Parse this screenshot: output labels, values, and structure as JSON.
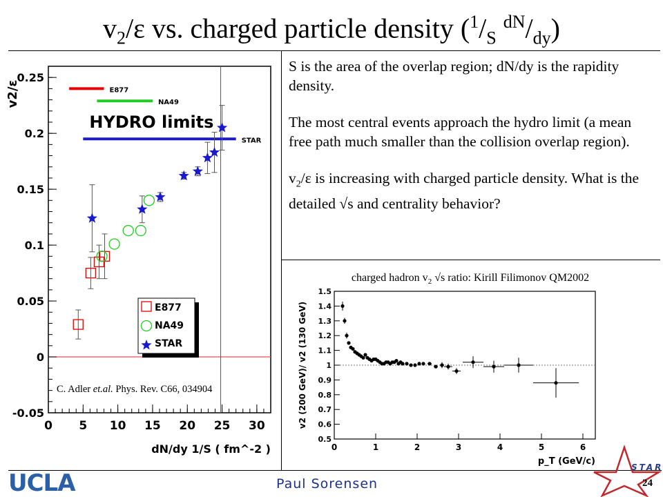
{
  "slide": {
    "title": {
      "v": "v",
      "v_sub": "2",
      "slash": "/",
      "eps": "ε",
      "rest": " vs. charged particle density (",
      "one": "1",
      "over": "/",
      "S": "S",
      "dN": "dN",
      "over2": "/",
      "dy": "dy",
      "close": ")"
    },
    "p1": "S is the area of the overlap region; dN/dy is the rapidity density.",
    "p2": "The most central events approach the hydro limit (a mean free path much smaller than the collision overlap region).",
    "p3a": "v",
    "p3sub": "2",
    "p3b": "/ε is increasing with charged particle density. What is the detailed √s and centrality behavior?",
    "credit_a": "charged  hadron v",
    "credit_sub": "2",
    "credit_b": " √s ratio: Kirill Filimonov QM2002",
    "author": "Paul Sorensen",
    "ucla": "UCLA",
    "page": "24",
    "star_logo_text": "STAR"
  },
  "colors": {
    "e877": "#e60000",
    "na49": "#22cc22",
    "star": "#1a1acc",
    "hydro": "#1a1acc",
    "author": "#1d2f8c",
    "ucla": "#2b5fa8"
  },
  "chart_data": [
    {
      "type": "scatter",
      "title": "",
      "xlabel": "dN/dy 1/S ( fm^-2 )",
      "ylabel": "v2/ε",
      "xlim": [
        0,
        32
      ],
      "ylim": [
        -0.05,
        0.26
      ],
      "x_ticks": [
        "0",
        "5",
        "10",
        "15",
        "20",
        "25",
        "30"
      ],
      "y_ticks": [
        "-0.05",
        "0",
        "0.05",
        "0.1",
        "0.15",
        "0.2",
        "0.25"
      ],
      "hydro_label": "HYDRO  limits",
      "reference": "C. Adler et.al. Phys. Rev. C66, 034904",
      "limits": [
        {
          "name": "E877",
          "y": 0.24,
          "x": [
            3,
            8
          ]
        },
        {
          "name": "NA49",
          "y": 0.229,
          "x": [
            7,
            15
          ]
        },
        {
          "name": "STAR",
          "y": 0.195,
          "x": [
            5,
            27
          ]
        }
      ],
      "series": [
        {
          "name": "E877",
          "marker": "open-square",
          "x": [
            4.3,
            6.1,
            7.3,
            8.1
          ],
          "y": [
            0.029,
            0.075,
            0.085,
            0.09
          ],
          "err": [
            0.013,
            0.014,
            0.015,
            0.02
          ]
        },
        {
          "name": "NA49",
          "marker": "open-circle",
          "x": [
            7.7,
            9.5,
            11.5,
            13.3,
            14.5
          ],
          "y": [
            0.09,
            0.101,
            0.113,
            0.113,
            0.14
          ],
          "err": [
            0.0,
            0.0,
            0.0,
            0.0,
            0.0
          ]
        },
        {
          "name": "STAR",
          "marker": "star",
          "x": [
            6.3,
            13.5,
            16.1,
            19.5,
            21.5,
            22.9,
            23.9,
            25.0
          ],
          "y": [
            0.124,
            0.132,
            0.143,
            0.162,
            0.166,
            0.178,
            0.183,
            0.205
          ],
          "err": [
            0.03,
            0.012,
            0.004,
            0.003,
            0.004,
            0.014,
            0.018,
            0.02
          ]
        }
      ]
    },
    {
      "type": "scatter",
      "title": "",
      "xlabel": "p_T (GeV/c)",
      "ylabel": "v2 (200 GeV)/ v2 (130 GeV)",
      "xlim": [
        0,
        6.3
      ],
      "ylim": [
        0.5,
        1.5
      ],
      "x_ticks": [
        "0",
        "1",
        "2",
        "3",
        "4",
        "5",
        "6"
      ],
      "y_ticks": [
        "0.5",
        "0.6",
        "0.7",
        "0.8",
        "0.9",
        "1",
        "1.1",
        "1.2",
        "1.3",
        "1.4",
        "1.5"
      ],
      "series": [
        {
          "name": "",
          "x": [
            0.2,
            0.25,
            0.3,
            0.35,
            0.4,
            0.45,
            0.5,
            0.55,
            0.6,
            0.65,
            0.7,
            0.75,
            0.8,
            0.85,
            0.9,
            0.95,
            1.0,
            1.05,
            1.1,
            1.15,
            1.2,
            1.25,
            1.3,
            1.35,
            1.4,
            1.45,
            1.5,
            1.55,
            1.6,
            1.65,
            1.75,
            1.85,
            1.95,
            2.05,
            2.15,
            2.3,
            2.45,
            2.6,
            2.75,
            2.95,
            3.35,
            3.85,
            4.45,
            5.35
          ],
          "y": [
            1.4,
            1.3,
            1.2,
            1.15,
            1.12,
            1.11,
            1.09,
            1.08,
            1.07,
            1.06,
            1.05,
            1.07,
            1.05,
            1.04,
            1.03,
            1.04,
            1.04,
            1.03,
            1.02,
            1.01,
            1.01,
            1.02,
            1.02,
            1.01,
            1.02,
            1.02,
            1.03,
            1.01,
            1.02,
            1.01,
            1.01,
            1.0,
            1.0,
            1.01,
            1.01,
            1.01,
            0.99,
            1.0,
            0.99,
            0.96,
            1.02,
            0.99,
            1.0,
            0.88
          ],
          "xerr": [
            0,
            0,
            0,
            0,
            0,
            0,
            0,
            0,
            0,
            0,
            0,
            0,
            0,
            0,
            0,
            0,
            0,
            0,
            0,
            0,
            0,
            0,
            0,
            0,
            0,
            0,
            0,
            0,
            0,
            0,
            0,
            0,
            0,
            0,
            0,
            0.05,
            0.05,
            0.05,
            0.1,
            0.1,
            0.25,
            0.25,
            0.35,
            0.55
          ],
          "yerr": [
            0.03,
            0.02,
            0.02,
            0.01,
            0.01,
            0.01,
            0.01,
            0.01,
            0.01,
            0.01,
            0.01,
            0.01,
            0.01,
            0.01,
            0.01,
            0.01,
            0.01,
            0.01,
            0.01,
            0.01,
            0.01,
            0.01,
            0.01,
            0.01,
            0.01,
            0.01,
            0.01,
            0.01,
            0.01,
            0.01,
            0.01,
            0.01,
            0.01,
            0.01,
            0.01,
            0.01,
            0.01,
            0.02,
            0.02,
            0.02,
            0.04,
            0.04,
            0.05,
            0.1
          ]
        }
      ]
    }
  ]
}
